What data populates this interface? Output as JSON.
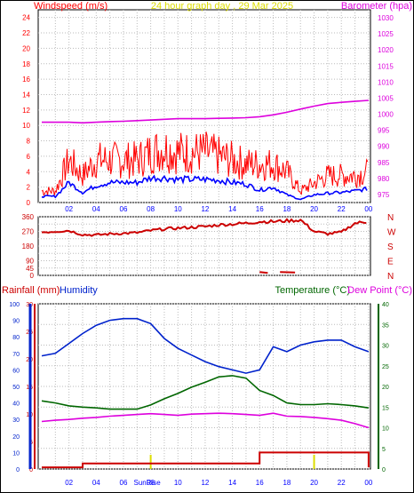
{
  "header": {
    "left_title": "Windspeed (m/s)",
    "center_title": "24 hour graph day , 29 Mar 2025",
    "right_title": "Barometer (hpa)"
  },
  "colors": {
    "gust": "#ff0000",
    "wind": "#0000ff",
    "baro": "#dd00dd",
    "direction": "#cc0000",
    "humidity": "#0022cc",
    "temperature": "#006600",
    "dewpoint": "#dd00dd",
    "rain": "#cc0000",
    "sun": "#dddd00"
  },
  "x_ticks": [
    "02",
    "04",
    "06",
    "08",
    "10",
    "12",
    "14",
    "16",
    "18",
    "20",
    "22",
    "00"
  ],
  "chart_data": [
    {
      "type": "line",
      "title": "24 hour graph day , 29 Mar 2025",
      "ylabel": "Windspeed (m/s)",
      "y2label": "Barometer (hpa)",
      "ylim": [
        0,
        25
      ],
      "y_ticks": [
        "0",
        "2",
        "4",
        "6",
        "8",
        "10",
        "12",
        "14",
        "16",
        "18",
        "20",
        "22",
        "24"
      ],
      "y2lim": [
        972.5,
        1032.5
      ],
      "y2_ticks": [
        "975",
        "980",
        "985",
        "990",
        "995",
        "1000",
        "1005",
        "1010",
        "1015",
        "1020",
        "1025",
        "1030"
      ],
      "x_hours": [
        0,
        1,
        2,
        3,
        4,
        5,
        6,
        7,
        8,
        9,
        10,
        11,
        12,
        13,
        14,
        15,
        16,
        17,
        18,
        19,
        20,
        21,
        22,
        23,
        24
      ],
      "series": [
        {
          "key": "gust",
          "values": [
            1.5,
            1.5,
            5.5,
            3.5,
            5.5,
            5.5,
            5.5,
            5.5,
            6.5,
            7,
            6.5,
            6.5,
            6.5,
            6,
            5.5,
            5,
            5,
            5,
            4,
            1.5,
            2.5,
            3.5,
            3.5,
            3.5,
            4
          ]
        },
        {
          "key": "wind",
          "values": [
            0.8,
            0.8,
            2.6,
            1.3,
            2.2,
            2.6,
            2.6,
            2.6,
            3.2,
            3.2,
            3,
            3,
            3,
            2.9,
            2.6,
            2.4,
            1.6,
            2,
            1,
            0.4,
            1,
            1.2,
            1.3,
            1.5,
            1.8
          ]
        },
        {
          "key": "barometer",
          "values": [
            997.5,
            997.5,
            997.5,
            997.3,
            997.5,
            997.7,
            997.8,
            998,
            998.2,
            998.4,
            998.6,
            998.6,
            998.6,
            998.7,
            998.8,
            998.9,
            999.2,
            999.8,
            1000.6,
            1001.6,
            1002.5,
            1003.3,
            1003.7,
            1004,
            1004.3
          ]
        }
      ]
    },
    {
      "type": "line",
      "title": "",
      "ylabel": "",
      "y_ticks": [
        "0",
        "45",
        "90",
        "135",
        "180",
        "225",
        "270",
        "315",
        "360"
      ],
      "ylim": [
        0,
        360
      ],
      "compass_labels": [
        "N",
        "W",
        "S",
        "E",
        "N"
      ],
      "x_hours": [
        0,
        1,
        2,
        3,
        4,
        5,
        6,
        7,
        8,
        9,
        10,
        11,
        12,
        13,
        14,
        15,
        16,
        17,
        18,
        19,
        20,
        21,
        22,
        23,
        24
      ],
      "series": [
        {
          "key": "direction",
          "values": [
            265,
            270,
            275,
            250,
            248,
            255,
            258,
            262,
            275,
            285,
            290,
            295,
            300,
            310,
            315,
            320,
            330,
            null,
            335,
            340,
            270,
            255,
            265,
            320,
            330
          ]
        }
      ]
    },
    {
      "type": "line",
      "title": "",
      "left_labels": [
        "Rainfall (mm)",
        "Humidity"
      ],
      "right_labels": [
        "Temperature (°C)",
        "Dew Point (°C)"
      ],
      "humidity_ticks": [
        "0",
        "5",
        "10",
        "15",
        "20",
        "25",
        "30",
        "35",
        "40",
        "45",
        "50",
        "55",
        "60",
        "65",
        "70",
        "75",
        "80",
        "85",
        "90",
        "95",
        "100"
      ],
      "rain_ticks": [
        "0",
        "5",
        "10",
        "15",
        "20",
        "25",
        "30"
      ],
      "temp_ticks": [
        "0",
        "5",
        "10",
        "15",
        "20",
        "25",
        "30",
        "35",
        "40"
      ],
      "humidity_lim": [
        0,
        100
      ],
      "rain_lim": [
        0,
        30
      ],
      "temp_lim": [
        0,
        40
      ],
      "x_hours": [
        0,
        1,
        2,
        3,
        4,
        5,
        6,
        7,
        8,
        9,
        10,
        11,
        12,
        13,
        14,
        15,
        16,
        17,
        18,
        19,
        20,
        21,
        22,
        23,
        24
      ],
      "sun_markers": {
        "label": "SunRise",
        "hours": [
          8,
          20
        ]
      },
      "series": [
        {
          "key": "humidity",
          "values": [
            68.5,
            70,
            76,
            82,
            87,
            90,
            91,
            91,
            88,
            79,
            73,
            69,
            65,
            62,
            60,
            58,
            60,
            74,
            71,
            75,
            77,
            78,
            78,
            74,
            71
          ]
        },
        {
          "key": "temperature",
          "values": [
            16.5,
            16,
            15.3,
            15,
            14.8,
            14.5,
            14.5,
            14.5,
            15.5,
            17,
            18.3,
            19.8,
            21,
            22.3,
            22.6,
            22,
            19,
            17.8,
            16,
            15.6,
            15.6,
            15.8,
            15.6,
            15.3,
            14.8
          ]
        },
        {
          "key": "dewpoint",
          "values": [
            11.5,
            11.8,
            12,
            12.3,
            12.5,
            12.8,
            13,
            13.2,
            13.4,
            13.2,
            13,
            13.3,
            13.4,
            13.5,
            13.4,
            13.2,
            13,
            13.5,
            12.8,
            12.7,
            12.5,
            12.2,
            11.8,
            11,
            10
          ]
        },
        {
          "key": "rain",
          "values": [
            0.3,
            0.3,
            0.3,
            1,
            1,
            1,
            1,
            1,
            1,
            1,
            1,
            1,
            1,
            1,
            1,
            1,
            3,
            3,
            3,
            3,
            3,
            3,
            3,
            3,
            0.3
          ]
        }
      ]
    }
  ]
}
